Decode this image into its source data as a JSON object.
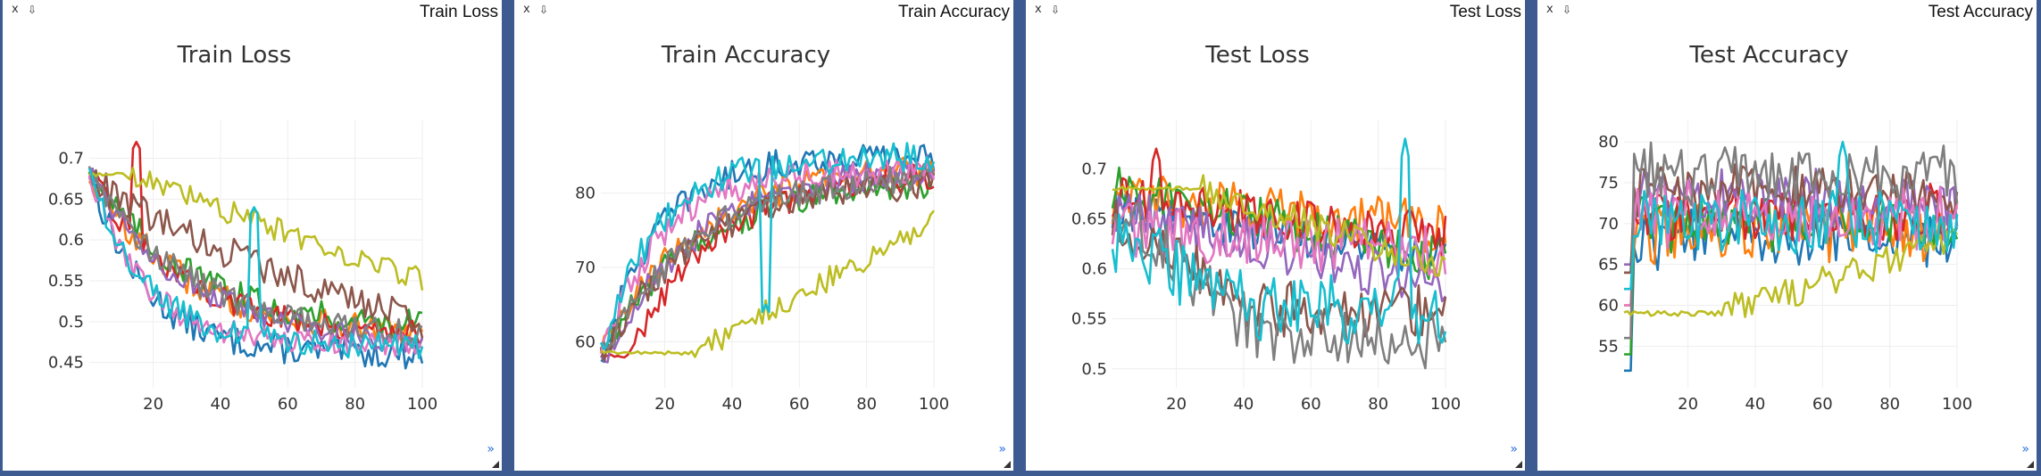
{
  "panes": [
    {
      "label": "Train Loss",
      "close_label": "x",
      "save_label": "⇩",
      "expand_label": "»"
    },
    {
      "label": "Train Accuracy",
      "close_label": "x",
      "save_label": "⇩",
      "expand_label": "»"
    },
    {
      "label": "Test Loss",
      "close_label": "x",
      "save_label": "⇩",
      "expand_label": "»"
    },
    {
      "label": "Test Accuracy",
      "close_label": "x",
      "save_label": "⇩",
      "expand_label": "»"
    }
  ],
  "colors": [
    "#1f77b4",
    "#ff7f0e",
    "#2ca02c",
    "#d62728",
    "#9467bd",
    "#8c564b",
    "#e377c2",
    "#7f7f7f",
    "#bcbd22",
    "#17becf"
  ],
  "chart_data": [
    {
      "type": "line",
      "title": "Train Loss",
      "xlabel": "",
      "ylabel": "",
      "xlim": [
        1,
        100
      ],
      "ylim": [
        0.43,
        0.73
      ],
      "xticks": [
        20,
        40,
        60,
        80,
        100
      ],
      "yticks": [
        0.45,
        0.5,
        0.55,
        0.6,
        0.65,
        0.7
      ],
      "ytick_labels": [
        "0.45",
        "0.5",
        "0.55",
        "0.6",
        "0.65",
        "0.7"
      ],
      "grid": true,
      "series": [
        {
          "start": 0.685,
          "end": 0.46,
          "noise": 0.018,
          "shape": "fast"
        },
        {
          "start": 0.68,
          "end": 0.48,
          "noise": 0.018,
          "shape": "mid"
        },
        {
          "start": 0.69,
          "end": 0.49,
          "noise": 0.018,
          "shape": "mid"
        },
        {
          "start": 0.68,
          "end": 0.48,
          "noise": 0.016,
          "shape": "mid",
          "spike_x": 15,
          "spike_y": 0.72
        },
        {
          "start": 0.69,
          "end": 0.47,
          "noise": 0.016,
          "shape": "mid"
        },
        {
          "start": 0.685,
          "end": 0.5,
          "noise": 0.02,
          "shape": "slow"
        },
        {
          "start": 0.68,
          "end": 0.47,
          "noise": 0.016,
          "shape": "fast"
        },
        {
          "start": 0.69,
          "end": 0.48,
          "noise": 0.016,
          "shape": "mid"
        },
        {
          "start": 0.68,
          "end": 0.55,
          "noise": 0.015,
          "shape": "plateau",
          "plateau_until": 12
        },
        {
          "start": 0.685,
          "end": 0.47,
          "noise": 0.016,
          "shape": "fast",
          "spike_x": 50,
          "spike_y": 0.64
        }
      ]
    },
    {
      "type": "line",
      "title": "Train Accuracy",
      "xlabel": "",
      "ylabel": "",
      "xlim": [
        1,
        100
      ],
      "ylim": [
        55,
        88
      ],
      "xticks": [
        20,
        40,
        60,
        80,
        100
      ],
      "yticks": [
        60,
        70,
        80
      ],
      "ytick_labels": [
        "60",
        "70",
        "80"
      ],
      "grid": true,
      "series": [
        {
          "start": 57,
          "end": 85,
          "noise": 2.0,
          "shape": "fast"
        },
        {
          "start": 58,
          "end": 84,
          "noise": 2.0,
          "shape": "mid"
        },
        {
          "start": 58,
          "end": 82,
          "noise": 2.0,
          "shape": "mid"
        },
        {
          "start": 58,
          "end": 83,
          "noise": 2.0,
          "shape": "late",
          "plateau_until": 9
        },
        {
          "start": 57,
          "end": 84,
          "noise": 2.0,
          "shape": "mid"
        },
        {
          "start": 58,
          "end": 82,
          "noise": 2.0,
          "shape": "mid"
        },
        {
          "start": 57,
          "end": 83,
          "noise": 2.0,
          "shape": "fast"
        },
        {
          "start": 58,
          "end": 83,
          "noise": 2.0,
          "shape": "mid"
        },
        {
          "start": 58.5,
          "end": 76,
          "noise": 1.8,
          "shape": "plateau",
          "plateau_until": 28
        },
        {
          "start": 58,
          "end": 85,
          "noise": 2.0,
          "shape": "fast",
          "spike_x": 50,
          "spike_y": 65
        }
      ]
    },
    {
      "type": "line",
      "title": "Test Loss",
      "xlabel": "",
      "ylabel": "",
      "xlim": [
        1,
        100
      ],
      "ylim": [
        0.49,
        0.735
      ],
      "xticks": [
        20,
        40,
        60,
        80,
        100
      ],
      "yticks": [
        0.5,
        0.55,
        0.6,
        0.65,
        0.7
      ],
      "ytick_labels": [
        "0.5",
        "0.55",
        "0.6",
        "0.65",
        "0.7"
      ],
      "grid": true,
      "series": [
        {
          "start": 0.66,
          "end": 0.61,
          "noise": 0.02,
          "shape": "flat"
        },
        {
          "start": 0.67,
          "end": 0.64,
          "noise": 0.028,
          "shape": "flat"
        },
        {
          "start": 0.68,
          "end": 0.61,
          "noise": 0.024,
          "shape": "flat"
        },
        {
          "start": 0.67,
          "end": 0.63,
          "noise": 0.024,
          "shape": "flat",
          "spike_x": 14,
          "spike_y": 0.72
        },
        {
          "start": 0.66,
          "end": 0.58,
          "noise": 0.024,
          "shape": "flat"
        },
        {
          "start": 0.65,
          "end": 0.56,
          "noise": 0.028,
          "shape": "dip"
        },
        {
          "start": 0.64,
          "end": 0.62,
          "noise": 0.03,
          "shape": "flat"
        },
        {
          "start": 0.66,
          "end": 0.53,
          "noise": 0.03,
          "shape": "dip"
        },
        {
          "start": 0.68,
          "end": 0.6,
          "noise": 0.015,
          "shape": "plateau",
          "plateau_until": 27
        },
        {
          "start": 0.63,
          "end": 0.56,
          "noise": 0.035,
          "shape": "dip",
          "spike_x": 88,
          "spike_y": 0.73
        }
      ]
    },
    {
      "type": "line",
      "title": "Test Accuracy",
      "xlabel": "",
      "ylabel": "",
      "xlim": [
        1,
        100
      ],
      "ylim": [
        51,
        81
      ],
      "xticks": [
        20,
        40,
        60,
        80,
        100
      ],
      "yticks": [
        55,
        60,
        65,
        70,
        75,
        80
      ],
      "ytick_labels": [
        "55",
        "60",
        "65",
        "70",
        "75",
        "80"
      ],
      "grid": true,
      "series": [
        {
          "start": 52,
          "end": 68,
          "noise": 3.0,
          "shape": "jump"
        },
        {
          "start": 60,
          "end": 69,
          "noise": 3.2,
          "shape": "jump"
        },
        {
          "start": 54,
          "end": 70,
          "noise": 3.0,
          "shape": "jump"
        },
        {
          "start": 64,
          "end": 71,
          "noise": 3.0,
          "shape": "jump"
        },
        {
          "start": 65,
          "end": 73,
          "noise": 3.0,
          "shape": "jump"
        },
        {
          "start": 64,
          "end": 74,
          "noise": 3.0,
          "shape": "jump"
        },
        {
          "start": 60,
          "end": 71,
          "noise": 3.5,
          "shape": "jump"
        },
        {
          "start": 56,
          "end": 76,
          "noise": 3.0,
          "shape": "jump"
        },
        {
          "start": 59,
          "end": 68,
          "noise": 2.0,
          "shape": "plateau",
          "plateau_until": 30
        },
        {
          "start": 62,
          "end": 70,
          "noise": 3.5,
          "shape": "jump",
          "spike_x": 66,
          "spike_y": 80
        }
      ]
    }
  ]
}
